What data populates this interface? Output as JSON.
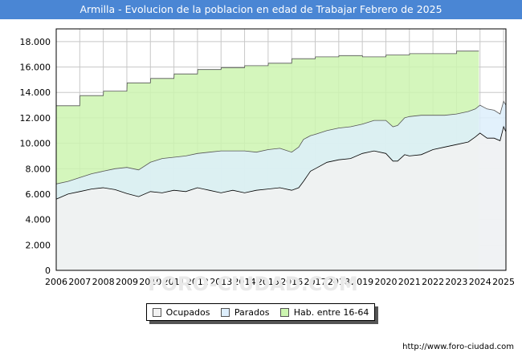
{
  "title": "Armilla - Evolucion de la poblacion en edad de Trabajar Febrero de 2025",
  "source": "http://www.foro-ciudad.com",
  "watermark": "FORO-CIUDAD.COM",
  "chart_data": {
    "type": "area",
    "title": "Armilla - Evolucion de la poblacion en edad de Trabajar Febrero de 2025",
    "xlabel": "",
    "ylabel": "",
    "xlim": [
      2006,
      2025.1
    ],
    "ylim": [
      0,
      19000
    ],
    "x_ticks": [
      2006,
      2007,
      2008,
      2009,
      2010,
      2011,
      2012,
      2013,
      2014,
      2015,
      2016,
      2017,
      2018,
      2019,
      2020,
      2021,
      2022,
      2023,
      2024,
      2025
    ],
    "y_ticks": [
      0,
      2000,
      4000,
      6000,
      8000,
      10000,
      12000,
      14000,
      16000,
      18000
    ],
    "y_tick_labels": [
      "0",
      "2.000",
      "4.000",
      "6.000",
      "8.000",
      "10.000",
      "12.000",
      "14.000",
      "16.000",
      "18.000"
    ],
    "grid": true,
    "legend_position": "bottom",
    "series": [
      {
        "name": "Ocupados",
        "fill": "#f2f2f2",
        "stroke": "#000000",
        "points": [
          [
            2006.0,
            5600
          ],
          [
            2006.5,
            6000
          ],
          [
            2007.0,
            6200
          ],
          [
            2007.5,
            6400
          ],
          [
            2008.0,
            6500
          ],
          [
            2008.5,
            6350
          ],
          [
            2009.0,
            6050
          ],
          [
            2009.5,
            5800
          ],
          [
            2010.0,
            6200
          ],
          [
            2010.5,
            6100
          ],
          [
            2011.0,
            6300
          ],
          [
            2011.5,
            6200
          ],
          [
            2012.0,
            6500
          ],
          [
            2012.5,
            6300
          ],
          [
            2013.0,
            6100
          ],
          [
            2013.5,
            6300
          ],
          [
            2014.0,
            6100
          ],
          [
            2014.5,
            6300
          ],
          [
            2015.0,
            6400
          ],
          [
            2015.5,
            6500
          ],
          [
            2016.0,
            6300
          ],
          [
            2016.3,
            6500
          ],
          [
            2016.5,
            7000
          ],
          [
            2016.8,
            7800
          ],
          [
            2017.0,
            8000
          ],
          [
            2017.5,
            8500
          ],
          [
            2018.0,
            8700
          ],
          [
            2018.5,
            8800
          ],
          [
            2019.0,
            9200
          ],
          [
            2019.5,
            9400
          ],
          [
            2020.0,
            9200
          ],
          [
            2020.3,
            8600
          ],
          [
            2020.5,
            8600
          ],
          [
            2020.8,
            9100
          ],
          [
            2021.0,
            9000
          ],
          [
            2021.5,
            9100
          ],
          [
            2022.0,
            9500
          ],
          [
            2022.5,
            9700
          ],
          [
            2023.0,
            9900
          ],
          [
            2023.5,
            10100
          ],
          [
            2023.8,
            10500
          ],
          [
            2024.0,
            10800
          ],
          [
            2024.3,
            10400
          ],
          [
            2024.6,
            10400
          ],
          [
            2024.85,
            10200
          ],
          [
            2025.0,
            11300
          ],
          [
            2025.1,
            10900
          ]
        ]
      },
      {
        "name": "Parados",
        "fill": "#ddeefc",
        "stroke": "#555555",
        "points": [
          [
            2006.0,
            6800
          ],
          [
            2006.5,
            7000
          ],
          [
            2007.0,
            7300
          ],
          [
            2007.5,
            7600
          ],
          [
            2008.0,
            7800
          ],
          [
            2008.5,
            8000
          ],
          [
            2009.0,
            8100
          ],
          [
            2009.5,
            7900
          ],
          [
            2010.0,
            8500
          ],
          [
            2010.5,
            8800
          ],
          [
            2011.0,
            8900
          ],
          [
            2011.5,
            9000
          ],
          [
            2012.0,
            9200
          ],
          [
            2012.5,
            9300
          ],
          [
            2013.0,
            9400
          ],
          [
            2013.5,
            9400
          ],
          [
            2014.0,
            9400
          ],
          [
            2014.5,
            9300
          ],
          [
            2015.0,
            9500
          ],
          [
            2015.5,
            9600
          ],
          [
            2016.0,
            9300
          ],
          [
            2016.3,
            9700
          ],
          [
            2016.5,
            10300
          ],
          [
            2016.8,
            10600
          ],
          [
            2017.0,
            10700
          ],
          [
            2017.5,
            11000
          ],
          [
            2018.0,
            11200
          ],
          [
            2018.5,
            11300
          ],
          [
            2019.0,
            11500
          ],
          [
            2019.5,
            11800
          ],
          [
            2020.0,
            11800
          ],
          [
            2020.3,
            11300
          ],
          [
            2020.5,
            11400
          ],
          [
            2020.8,
            12000
          ],
          [
            2021.0,
            12100
          ],
          [
            2021.5,
            12200
          ],
          [
            2022.0,
            12200
          ],
          [
            2022.5,
            12200
          ],
          [
            2023.0,
            12300
          ],
          [
            2023.5,
            12500
          ],
          [
            2023.8,
            12700
          ],
          [
            2024.0,
            13000
          ],
          [
            2024.3,
            12700
          ],
          [
            2024.6,
            12600
          ],
          [
            2024.85,
            12300
          ],
          [
            2025.0,
            13300
          ],
          [
            2025.1,
            13000
          ]
        ]
      },
      {
        "name": "Hab. entre 16-64",
        "fill": "#ccf5b0",
        "stroke": "#555555",
        "points": [
          [
            2006.0,
            12950
          ],
          [
            2007.0,
            12950
          ],
          [
            2007.01,
            13750
          ],
          [
            2008.0,
            13750
          ],
          [
            2008.01,
            14100
          ],
          [
            2009.0,
            14100
          ],
          [
            2009.01,
            14750
          ],
          [
            2010.0,
            14750
          ],
          [
            2010.01,
            15100
          ],
          [
            2011.0,
            15100
          ],
          [
            2011.01,
            15450
          ],
          [
            2012.0,
            15450
          ],
          [
            2012.01,
            15800
          ],
          [
            2013.0,
            15800
          ],
          [
            2013.01,
            15950
          ],
          [
            2014.0,
            15950
          ],
          [
            2014.01,
            16100
          ],
          [
            2015.0,
            16100
          ],
          [
            2015.01,
            16300
          ],
          [
            2016.0,
            16300
          ],
          [
            2016.01,
            16650
          ],
          [
            2017.0,
            16650
          ],
          [
            2017.01,
            16800
          ],
          [
            2018.0,
            16800
          ],
          [
            2018.01,
            16900
          ],
          [
            2019.0,
            16900
          ],
          [
            2019.01,
            16800
          ],
          [
            2020.0,
            16800
          ],
          [
            2020.01,
            16950
          ],
          [
            2021.0,
            16950
          ],
          [
            2021.01,
            17050
          ],
          [
            2022.0,
            17050
          ],
          [
            2022.01,
            17050
          ],
          [
            2023.0,
            17050
          ],
          [
            2023.01,
            17250
          ],
          [
            2023.95,
            17250
          ]
        ]
      }
    ]
  }
}
